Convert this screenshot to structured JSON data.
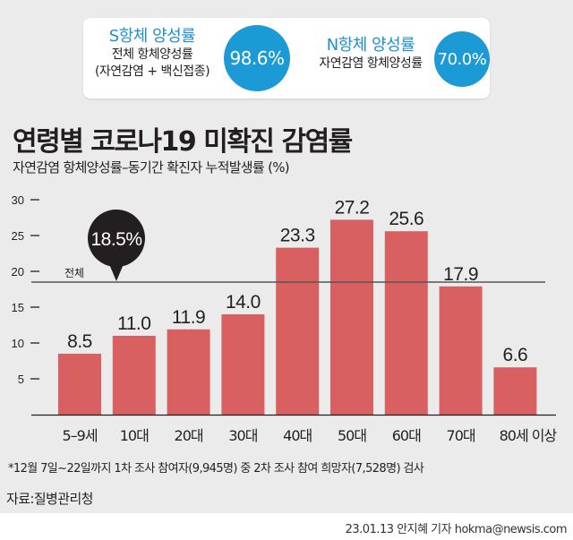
{
  "stats": {
    "s_antibody": {
      "title": "S항체 양성률",
      "sub1": "전체 항체양성률",
      "sub2": "(자연감염 + 백신접종)",
      "value": "98.6%"
    },
    "n_antibody": {
      "title": "N항체 양성률",
      "sub1": "자연감염 항체양성률",
      "value": "70.0%"
    },
    "accent_color": "#1c9ad6"
  },
  "header": {
    "title": "연령별 코로나19 미확진 감염률",
    "subtitle": "자연감염 항체양성률–동기간 확진자 누적발생률 (%)"
  },
  "chart_data": {
    "type": "bar",
    "title": "연령별 코로나19 미확진 감염률",
    "subtitle": "자연감염 항체양성률–동기간 확진자 누적발생률 (%)",
    "xlabel": "",
    "ylabel": "%",
    "categories": [
      "5–9세",
      "10대",
      "20대",
      "30대",
      "40대",
      "50대",
      "60대",
      "70대",
      "80세 이상"
    ],
    "values": [
      8.5,
      11.0,
      11.9,
      14.0,
      23.3,
      27.2,
      25.6,
      17.9,
      6.6
    ],
    "value_labels": [
      "8.5",
      "11.0",
      "11.9",
      "14.0",
      "23.3",
      "27.2",
      "25.6",
      "17.9",
      "6.6"
    ],
    "ylim": [
      0,
      30
    ],
    "yticks": [
      5,
      10,
      15,
      20,
      25,
      30
    ],
    "ytick_labels": [
      "5",
      "10",
      "15",
      "20",
      "25",
      "30"
    ],
    "grid": false,
    "bar_color": "#d96060",
    "reference_line": {
      "label": "전체",
      "value": 18.5,
      "callout": "18.5%"
    }
  },
  "footer": {
    "footnote": "*12월 7일~22일까지 1차 조사 참여자(9,945명) 중 2차 조사 참여 희망자(7,528명) 검사",
    "source": "자료:질병관리청",
    "credit": "23.01.13 안지혜 기자 hokma@newsis.com"
  }
}
